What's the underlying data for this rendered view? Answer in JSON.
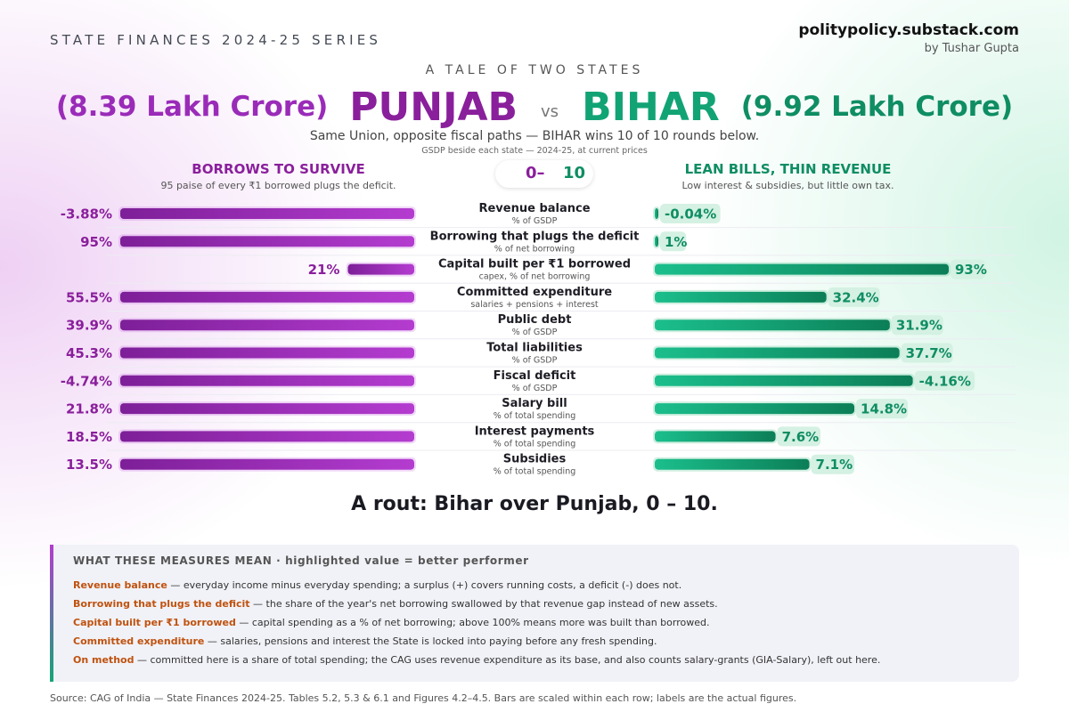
{
  "header": {
    "series": "STATE FINANCES 2024-25 SERIES",
    "site": "politypolicy.substack.com",
    "byline": "by Tushar Gupta",
    "tale": "A TALE OF TWO STATES",
    "left_gsdp": "(8.39 Lakh Crore)",
    "left_state": "PUNJAB",
    "vs": "vs",
    "right_state": "BIHAR",
    "right_gsdp": "(9.92 Lakh Crore)",
    "tagline": "Same Union, opposite fiscal paths — BIHAR wins 10 of 10 rounds below.",
    "gsdp_note": "GSDP beside each state — 2024-25, at current prices"
  },
  "left_panel": {
    "heading": "BORROWS TO SURVIVE",
    "sub": "95 paise of every ₹1 borrowed plugs the deficit."
  },
  "right_panel": {
    "heading": "LEAN BILLS, THIN REVENUE",
    "sub": "Low interest & subsidies, but little own tax."
  },
  "score": {
    "left": "0–",
    "right": "10"
  },
  "colors": {
    "punjab": "#9a2bb8",
    "bihar": "#12a375",
    "term": "#c0520f"
  },
  "chart_data": {
    "type": "bar",
    "series": [
      {
        "name": "PUNJAB",
        "values": [
          -3.88,
          95,
          21,
          55.5,
          39.9,
          45.3,
          -4.74,
          21.8,
          18.5,
          13.5
        ]
      },
      {
        "name": "BIHAR",
        "values": [
          -0.04,
          1,
          93,
          32.4,
          31.9,
          37.7,
          -4.16,
          14.8,
          7.6,
          7.1
        ]
      }
    ],
    "rows": [
      {
        "metric": "Revenue balance",
        "unit": "% of GSDP",
        "left": "-3.88%",
        "right": "-0.04%"
      },
      {
        "metric": "Borrowing that plugs the deficit",
        "unit": "% of net borrowing",
        "left": "95%",
        "right": "1%"
      },
      {
        "metric": "Capital built per ₹1 borrowed",
        "unit": "capex, % of net borrowing",
        "left": "21%",
        "right": "93%"
      },
      {
        "metric": "Committed expenditure",
        "unit": "salaries + pensions + interest",
        "left": "55.5%",
        "right": "32.4%"
      },
      {
        "metric": "Public debt",
        "unit": "% of GSDP",
        "left": "39.9%",
        "right": "31.9%"
      },
      {
        "metric": "Total liabilities",
        "unit": "% of GSDP",
        "left": "45.3%",
        "right": "37.7%"
      },
      {
        "metric": "Fiscal deficit",
        "unit": "% of GSDP",
        "left": "-4.74%",
        "right": "-4.16%"
      },
      {
        "metric": "Salary bill",
        "unit": "% of total spending",
        "left": "21.8%",
        "right": "14.8%"
      },
      {
        "metric": "Interest payments",
        "unit": "% of total spending",
        "left": "18.5%",
        "right": "7.6%"
      },
      {
        "metric": "Subsidies",
        "unit": "% of total spending",
        "left": "13.5%",
        "right": "7.1%"
      }
    ]
  },
  "verdict": "A rout: Bihar over Punjab, 0  –  10.",
  "notes": {
    "title": "WHAT THESE MEASURES MEAN · highlighted value = better performer",
    "items": [
      {
        "term": "Revenue balance",
        "text": " — everyday income minus everyday spending; a surplus (+) covers running costs, a deficit (-) does not."
      },
      {
        "term": "Borrowing that plugs the deficit",
        "text": " — the share of the year's net borrowing swallowed by that revenue gap instead of new assets."
      },
      {
        "term": "Capital built per ₹1 borrowed",
        "text": " — capital spending as a % of net borrowing; above 100% means more was built than borrowed."
      },
      {
        "term": "Committed expenditure",
        "text": " — salaries, pensions and interest the State is locked into paying before any fresh spending."
      },
      {
        "term": "On method",
        "text": " — committed here is a share of total spending; the CAG uses revenue expenditure as its base, and also counts salary-grants (GIA-Salary), left out here."
      }
    ]
  },
  "source": "Source: CAG of India — State Finances 2024-25. Tables 5.2, 5.3 & 6.1 and Figures 4.2–4.5. Bars are scaled within each row; labels are the actual figures."
}
